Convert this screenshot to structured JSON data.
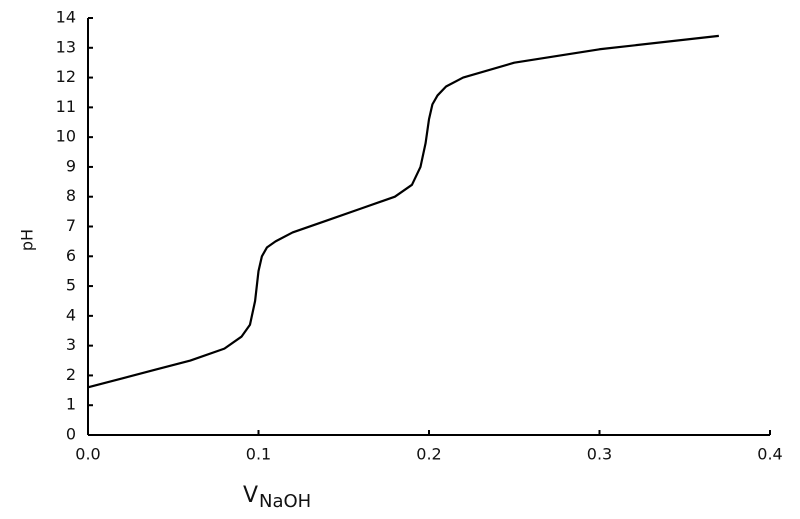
{
  "chart_data": {
    "type": "line",
    "xlabel": "V",
    "xlabel_subscript": "NaOH",
    "ylabel": "pH",
    "x": [
      0,
      0.02,
      0.04,
      0.06,
      0.08,
      0.09,
      0.095,
      0.098,
      0.1,
      0.102,
      0.105,
      0.11,
      0.12,
      0.14,
      0.16,
      0.18,
      0.19,
      0.195,
      0.198,
      0.2,
      0.202,
      0.205,
      0.21,
      0.22,
      0.25,
      0.3,
      0.37
    ],
    "y": [
      1.6,
      1.9,
      2.2,
      2.5,
      2.9,
      3.3,
      3.7,
      4.5,
      5.5,
      6.0,
      6.3,
      6.5,
      6.8,
      7.2,
      7.6,
      8.0,
      8.4,
      9.0,
      9.8,
      10.6,
      11.1,
      11.4,
      11.7,
      12.0,
      12.5,
      12.95,
      13.4
    ],
    "color": "#000000",
    "xlim": [
      0,
      0.4
    ],
    "ylim": [
      0,
      14
    ],
    "xticks": [
      {
        "value": 0,
        "label": "0.0"
      },
      0.1,
      0.2,
      0.3,
      0.4
    ],
    "yticks": [
      0,
      1,
      2,
      3,
      4,
      5,
      6,
      7,
      8,
      9,
      10,
      11,
      12,
      13,
      14
    ]
  }
}
